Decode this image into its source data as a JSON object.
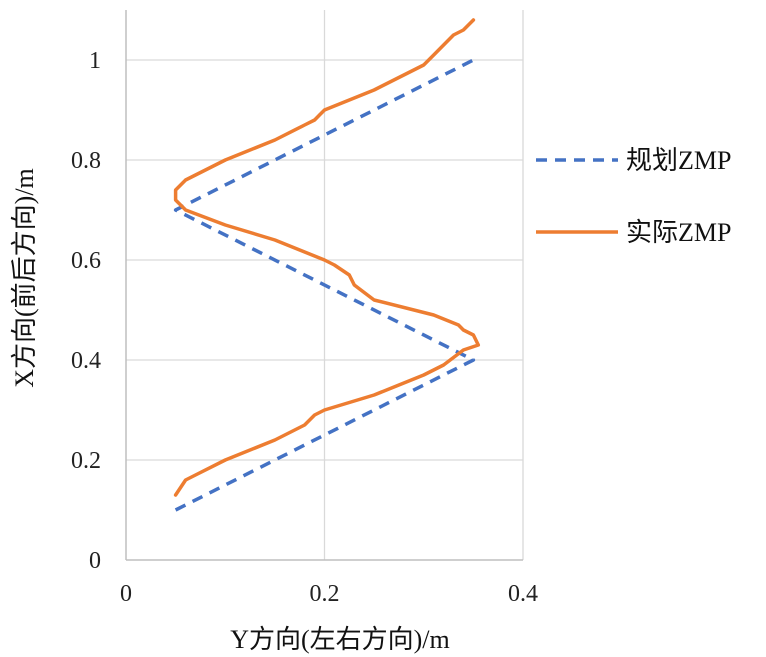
{
  "chart_data": {
    "type": "line",
    "title": "",
    "xlabel": "Y方向(左右方向)/m",
    "ylabel": "X方向(前后方向)/m",
    "xlim": [
      0,
      0.4
    ],
    "ylim": [
      0,
      1.0
    ],
    "x_ticks": [
      "0",
      "0.2",
      "0.4"
    ],
    "y_ticks": [
      "0",
      "0.2",
      "0.4",
      "0.6",
      "0.8",
      "1"
    ],
    "grid": "horizontal",
    "legend_position": "right",
    "series": [
      {
        "name": "规划ZMP",
        "style": "dashed",
        "color": "#4472C4",
        "points": [
          [
            0.05,
            0.1
          ],
          [
            0.35,
            0.4
          ],
          [
            0.05,
            0.7
          ],
          [
            0.35,
            1.0
          ]
        ]
      },
      {
        "name": "实际ZMP",
        "style": "solid",
        "color": "#ED7D31",
        "points": [
          [
            0.05,
            0.13
          ],
          [
            0.06,
            0.16
          ],
          [
            0.07,
            0.17
          ],
          [
            0.1,
            0.2
          ],
          [
            0.15,
            0.24
          ],
          [
            0.18,
            0.27
          ],
          [
            0.19,
            0.29
          ],
          [
            0.2,
            0.3
          ],
          [
            0.25,
            0.33
          ],
          [
            0.3,
            0.37
          ],
          [
            0.32,
            0.39
          ],
          [
            0.34,
            0.42
          ],
          [
            0.355,
            0.43
          ],
          [
            0.35,
            0.45
          ],
          [
            0.34,
            0.46
          ],
          [
            0.335,
            0.47
          ],
          [
            0.31,
            0.49
          ],
          [
            0.25,
            0.52
          ],
          [
            0.23,
            0.55
          ],
          [
            0.225,
            0.57
          ],
          [
            0.21,
            0.59
          ],
          [
            0.2,
            0.6
          ],
          [
            0.15,
            0.64
          ],
          [
            0.1,
            0.67
          ],
          [
            0.06,
            0.7
          ],
          [
            0.055,
            0.71
          ],
          [
            0.05,
            0.72
          ],
          [
            0.05,
            0.74
          ],
          [
            0.055,
            0.75
          ],
          [
            0.06,
            0.76
          ],
          [
            0.1,
            0.8
          ],
          [
            0.15,
            0.84
          ],
          [
            0.18,
            0.87
          ],
          [
            0.19,
            0.88
          ],
          [
            0.195,
            0.89
          ],
          [
            0.2,
            0.9
          ],
          [
            0.25,
            0.94
          ],
          [
            0.3,
            0.99
          ],
          [
            0.31,
            1.01
          ],
          [
            0.32,
            1.03
          ],
          [
            0.33,
            1.05
          ],
          [
            0.34,
            1.06
          ],
          [
            0.35,
            1.08
          ]
        ]
      }
    ]
  }
}
